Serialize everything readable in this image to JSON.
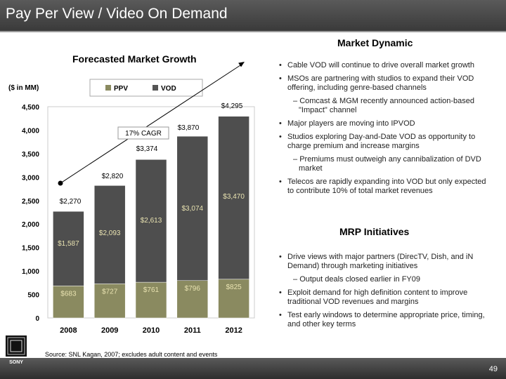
{
  "header": {
    "title": "Pay Per View / Video On Demand"
  },
  "market_dynamic": {
    "title": "Market Dynamic",
    "bullets": [
      {
        "text": "Cable VOD will continue to drive overall market growth",
        "subs": []
      },
      {
        "text": "MSOs are partnering with studios to expand their VOD offering, including genre-based channels",
        "subs": [
          "Comcast & MGM recently announced action-based \"Impact\" channel"
        ]
      },
      {
        "text": "Major players are moving into IPVOD",
        "subs": []
      },
      {
        "text": "Studios exploring Day-and-Date VOD as opportunity to charge premium and increase margins",
        "subs": [
          "Premiums must outweigh any cannibalization of DVD market"
        ]
      },
      {
        "text": "Telecos are rapidly expanding into VOD but only expected to contribute 10% of total market revenues",
        "subs": []
      }
    ]
  },
  "mrp": {
    "title": "MRP Initiatives",
    "bullets": [
      {
        "text": "Drive views with major partners (DirecTV, Dish, and iN Demand) through marketing initiatives",
        "subs": [
          "Output deals closed earlier in FY09"
        ]
      },
      {
        "text": "Exploit demand for high definition content to improve traditional VOD revenues and margins",
        "subs": []
      },
      {
        "text": "Test early windows to determine appropriate price, timing, and other key terms",
        "subs": []
      }
    ]
  },
  "source": "Source:  SNL Kagan, 2007; excludes adult content and events",
  "page_number": "49",
  "logo_text": "SONY",
  "chart_data": {
    "type": "bar",
    "stacked": true,
    "title": "Forecasted Market Growth",
    "ylabel": "($ in MM)",
    "categories": [
      "2008",
      "2009",
      "2010",
      "2011",
      "2012"
    ],
    "ylim": [
      0,
      4500
    ],
    "yticks": [
      "0",
      "500",
      "1,000",
      "1,500",
      "2,000",
      "2,500",
      "3,000",
      "3,500",
      "4,000",
      "4,500"
    ],
    "series": [
      {
        "name": "PPV",
        "values": [
          683,
          727,
          761,
          796,
          825
        ],
        "labels": [
          "$683",
          "$727",
          "$761",
          "$796",
          "$825"
        ],
        "color": "#8a8a60"
      },
      {
        "name": "VOD",
        "values": [
          1587,
          2093,
          2613,
          3074,
          3470
        ],
        "labels": [
          "$1,587",
          "$2,093",
          "$2,613",
          "$3,074",
          "$3,470"
        ],
        "color": "#4e4e4e"
      }
    ],
    "totals": [
      2270,
      2820,
      3374,
      3870,
      4295
    ],
    "total_labels": [
      "$2,270",
      "$2,820",
      "$3,374",
      "$3,870",
      "$4,295"
    ],
    "annotation": "17% CAGR",
    "colors": {
      "ppv_legend": "#8a8a60",
      "vod_legend": "#555555"
    }
  }
}
